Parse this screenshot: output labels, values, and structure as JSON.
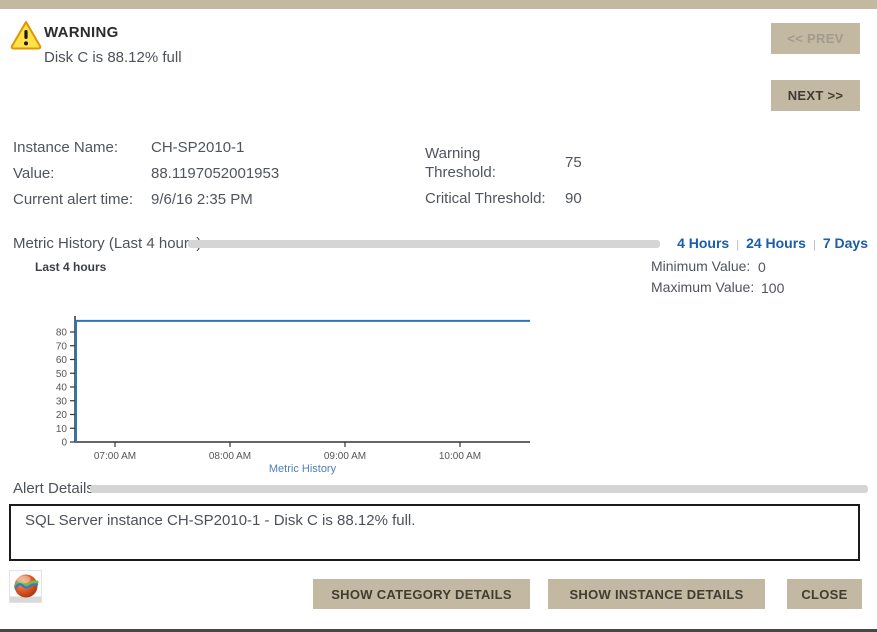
{
  "header": {
    "severity": "WARNING",
    "message": "Disk C is 88.12% full"
  },
  "nav": {
    "prev_label": "<< PREV",
    "next_label": "NEXT >>"
  },
  "details": {
    "instance_name_label": "Instance Name:",
    "instance_name": "CH-SP2010-1",
    "value_label": "Value:",
    "value": "88.1197052001953",
    "alert_time_label": "Current alert time:",
    "alert_time": "9/6/16 2:35 PM",
    "warning_threshold_label": "Warning Threshold:",
    "warning_threshold": "75",
    "critical_threshold_label": "Critical Threshold:",
    "critical_threshold": "90"
  },
  "metric_history": {
    "section_label": "Metric History (Last 4 hours)",
    "range_links": [
      "4 Hours",
      "24 Hours",
      "7 Days"
    ],
    "minimum_label": "Minimum Value:",
    "minimum": "0",
    "maximum_label": "Maximum Value:",
    "maximum": "100"
  },
  "chart_data": {
    "type": "line",
    "title": "Last 4 hours",
    "x": [
      "07:00 AM",
      "08:00 AM",
      "09:00 AM",
      "10:00 AM"
    ],
    "series": [
      {
        "name": "Metric History",
        "values": [
          88.12,
          88.12,
          88.12,
          88.12
        ]
      }
    ],
    "yticks": [
      0,
      10,
      20,
      30,
      40,
      50,
      60,
      70,
      80
    ],
    "ylim": [
      0,
      88.12
    ],
    "xlabel": "",
    "ylabel": "",
    "grid": false,
    "legend_position": "bottom",
    "line_color": "#2e75b6",
    "axis_color": "#333333",
    "tick_text_color": "#555555"
  },
  "alert_details": {
    "section_label": "Alert Details",
    "text": "SQL Server instance CH-SP2010-1 - Disk C is 88.12% full."
  },
  "footer": {
    "category_button": "SHOW CATEGORY DETAILS",
    "instance_button": "SHOW INSTANCE DETAILS",
    "close_button": "CLOSE"
  },
  "colors": {
    "accent_tan": "#c3b9a2",
    "link_blue": "#1b5da8",
    "line_blue": "#2e75b6",
    "legend_blue": "#4f81bd",
    "separator_gray": "#d5d5d5",
    "warning_yellow": "#ffe14a",
    "warning_border": "#e09600"
  }
}
